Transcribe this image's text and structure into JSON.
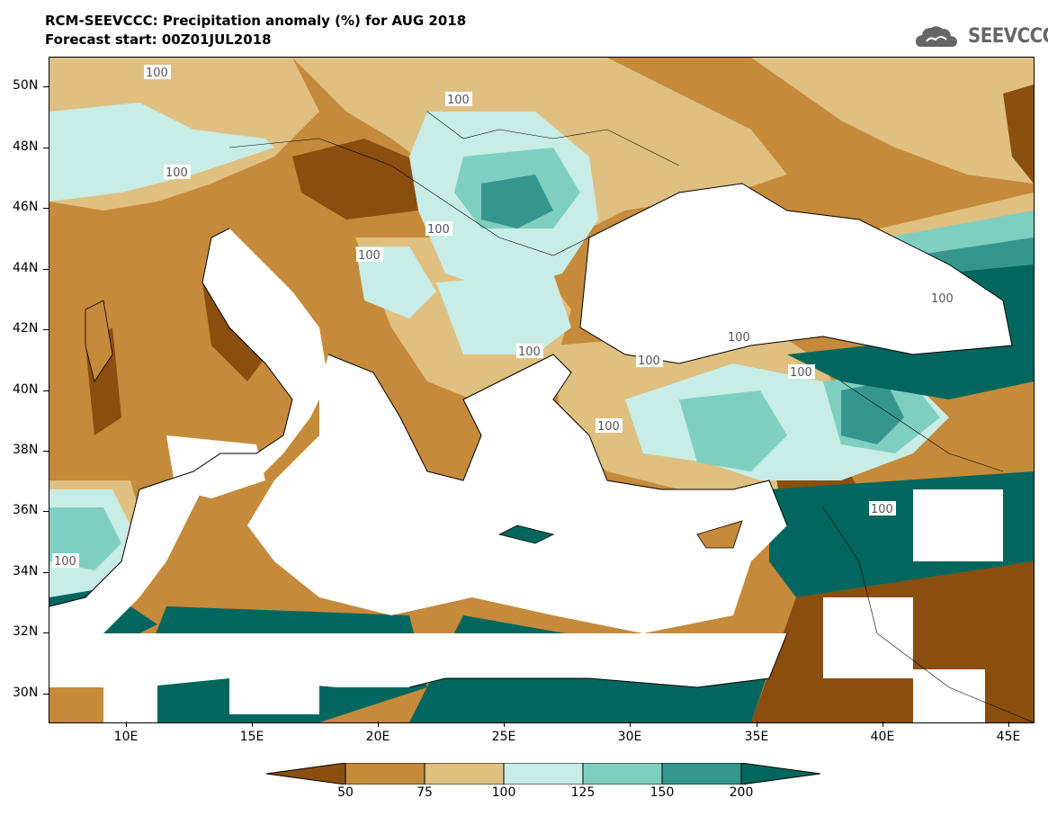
{
  "header": {
    "title": "RCM-SEEVCCC: Precipitation anomaly (%) for AUG 2018",
    "subtitle": "Forecast start: 00Z01JUL2018",
    "logo_text": "SEEVCCC",
    "logo_icon": "cloud-icon"
  },
  "map": {
    "lat_labels": [
      "50N",
      "48N",
      "46N",
      "44N",
      "42N",
      "40N",
      "38N",
      "36N",
      "34N",
      "32N",
      "30N"
    ],
    "lon_labels": [
      "10E",
      "15E",
      "20E",
      "25E",
      "30E",
      "35E",
      "40E",
      "45E"
    ],
    "contour_label": "100",
    "colors": {
      "lt50": "#8a4e0f",
      "50_75": "#c58a3a",
      "75_100": "#dfc080",
      "100_125": "#c8ece6",
      "125_150": "#7fcfc1",
      "150_200": "#35968d",
      "gt200": "#01665e",
      "sea": "#ffffff"
    }
  },
  "colorbar": {
    "labels": [
      "50",
      "75",
      "100",
      "125",
      "150",
      "200"
    ]
  }
}
